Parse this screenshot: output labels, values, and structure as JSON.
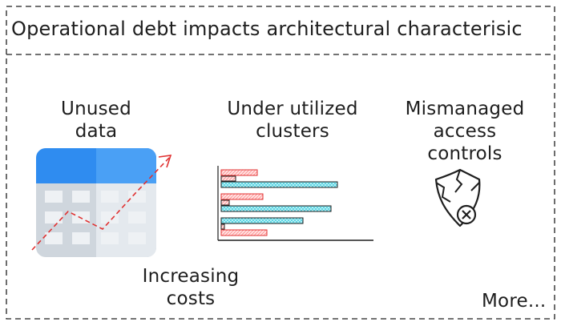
{
  "title": "Operational debt impacts architectural characterisic",
  "labels": {
    "unused_data": [
      "Unused",
      "data"
    ],
    "under_utilized": [
      "Under utilized",
      "clusters"
    ],
    "mismanaged": [
      "Mismanaged",
      "access",
      "controls"
    ],
    "increasing_costs": [
      "Increasing",
      "costs"
    ],
    "more": "More..."
  },
  "colors": {
    "table_header": "#2f8cf0",
    "table_body": "#cfd6dd",
    "table_cell": "#eef1f4",
    "trend_line": "#e03131",
    "bar_red": "#ffc9c9",
    "bar_blue": "#99e9f2",
    "stroke": "#1e1e1e"
  },
  "icons": {
    "table": "spreadsheet-icon",
    "trend": "trend-up-arrow-icon",
    "chart": "bar-chart-icon",
    "shield": "broken-shield-icon"
  }
}
